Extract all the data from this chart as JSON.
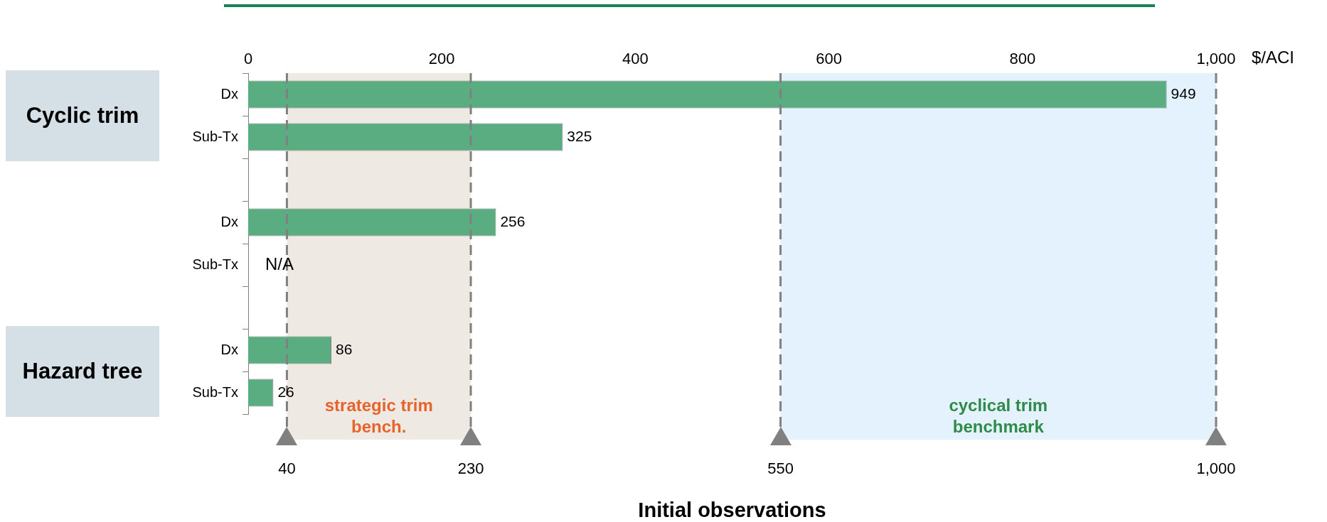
{
  "chart_data": {
    "type": "bar",
    "orientation": "horizontal",
    "title": "Initial observations",
    "xlabel": "$/ACI",
    "categories": [
      "Dx",
      "Sub-Tx",
      null,
      "Dx",
      "Sub-Tx",
      null,
      "Dx",
      "Sub-Tx"
    ],
    "values": [
      949,
      325,
      null,
      256,
      null,
      null,
      86,
      26
    ],
    "value_labels": [
      "949",
      "325",
      null,
      "256",
      "N/A",
      null,
      "86",
      "26"
    ],
    "color": "#5aad80",
    "xlim": [
      0,
      1000
    ],
    "xticks": [
      0,
      200,
      400,
      600,
      800,
      {
        "value": 1000,
        "label": "1,000"
      }
    ],
    "bands": [
      {
        "axis": "x",
        "from": 40,
        "to": 230,
        "label": "strategic trim bench.",
        "color": "#efe9e3"
      },
      {
        "axis": "x",
        "from": 550,
        "to": 1000,
        "label": "cyclical trim benchmark",
        "color": "#e3f2fc"
      }
    ],
    "ref_lines": [
      {
        "axis": "x",
        "value": 40,
        "label": "40",
        "line_style": "dashed"
      },
      {
        "axis": "x",
        "value": 230,
        "label": "230",
        "line_style": "dashed"
      },
      {
        "axis": "x",
        "value": 550,
        "label": "550",
        "line_style": "dashed"
      },
      {
        "axis": "x",
        "value": 1000,
        "label": "1,000",
        "line_style": "dashed"
      }
    ],
    "annotations": [
      "Cyclic trim",
      "Hazard tree"
    ],
    "legend": false
  }
}
